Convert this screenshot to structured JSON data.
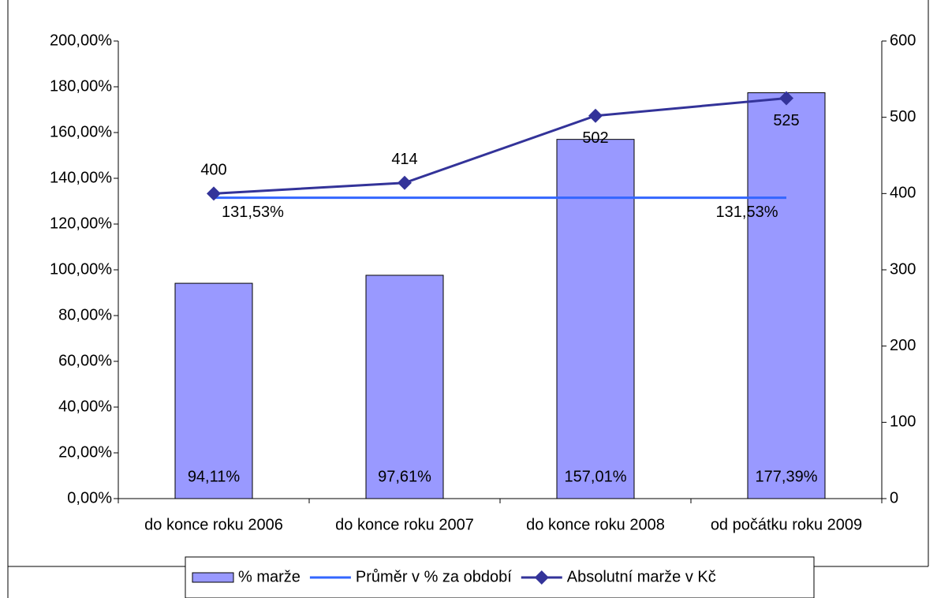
{
  "chart_data": {
    "type": "bar_line",
    "categories": [
      "do konce roku 2006",
      "do konce roku 2007",
      "do konce roku 2008",
      "od počátku roku 2009"
    ],
    "series": [
      {
        "name": "% marže",
        "type": "bar",
        "color": "#9999ff",
        "values": [
          94.11,
          97.61,
          157.01,
          177.39
        ],
        "value_labels": [
          "94,11%",
          "97,61%",
          "157,01%",
          "177,39%"
        ]
      },
      {
        "name": "Průměr v % za období",
        "type": "line",
        "color": "#3366ff",
        "values": [
          131.53,
          131.53,
          131.53,
          131.53
        ],
        "value_labels": [
          "131,53%",
          null,
          null,
          "131,53%"
        ]
      },
      {
        "name": "Absolutní marže v Kč",
        "type": "line",
        "axis": "y2",
        "marker": "diamond",
        "color": "#333399",
        "values": [
          400,
          414,
          502,
          525
        ]
      }
    ],
    "ylim": [
      0,
      200
    ],
    "yticks": [
      {
        "value": 0,
        "label": "0,00%"
      },
      {
        "value": 20,
        "label": "20,00%"
      },
      {
        "value": 40,
        "label": "40,00%"
      },
      {
        "value": 60,
        "label": "60,00%"
      },
      {
        "value": 80,
        "label": "80,00%"
      },
      {
        "value": 100,
        "label": "100,00%"
      },
      {
        "value": 120,
        "label": "120,00%"
      },
      {
        "value": 140,
        "label": "140,00%"
      },
      {
        "value": 160,
        "label": "160,00%"
      },
      {
        "value": 180,
        "label": "180,00%"
      },
      {
        "value": 200,
        "label": "200,00%"
      }
    ],
    "y2lim": [
      0,
      600
    ],
    "y2ticks": [
      0,
      100,
      200,
      300,
      400,
      500,
      600
    ],
    "grid": false,
    "legend": "bottom"
  }
}
